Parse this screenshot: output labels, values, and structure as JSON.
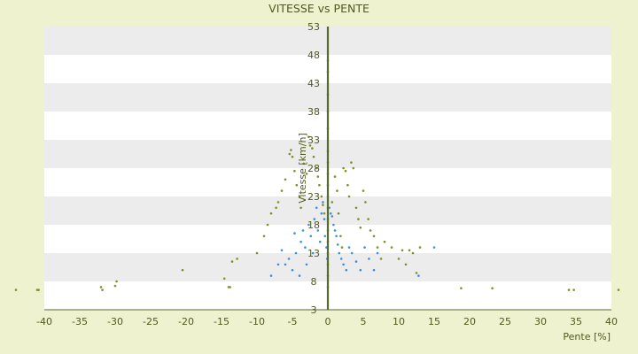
{
  "chart_data": {
    "type": "scatter",
    "title": "VITESSE vs PENTE",
    "xlabel": "Pente [%]",
    "ylabel": "Vitesse [km/h]",
    "xlim": [
      -40,
      40
    ],
    "ylim": [
      3,
      53
    ],
    "xticks": [
      -40,
      -35,
      -30,
      -25,
      -20,
      -15,
      -10,
      -5,
      0,
      5,
      10,
      15,
      20,
      25,
      30,
      35,
      40
    ],
    "yticks": [
      3,
      8,
      13,
      18,
      23,
      28,
      33,
      38,
      43,
      48,
      53
    ],
    "grid": "horizontal alternating bands",
    "legend": "none",
    "colors": {
      "background": "#eef2cf",
      "band_light": "#ffffff",
      "band_dark": "#ececec",
      "text": "#4f5a1c",
      "axis": "#556b2f",
      "series_olive": "#7f8f2a",
      "series_blue": "#3f8fd8"
    },
    "series": [
      {
        "color": "#7f8f2a",
        "points": [
          [
            -44,
            6.5
          ],
          [
            -41,
            6.5
          ],
          [
            -40.8,
            6.5
          ],
          [
            -32,
            7
          ],
          [
            -31.8,
            6.5
          ],
          [
            -30,
            7.2
          ],
          [
            -29.8,
            8
          ],
          [
            -20.5,
            10
          ],
          [
            -14.6,
            8.5
          ],
          [
            -14,
            7
          ],
          [
            -13.8,
            7
          ],
          [
            -13.5,
            11.5
          ],
          [
            -12.8,
            12
          ],
          [
            -10,
            13
          ],
          [
            -9,
            16
          ],
          [
            -8.5,
            18
          ],
          [
            -8,
            20
          ],
          [
            -7.3,
            21
          ],
          [
            -7,
            22
          ],
          [
            -6.5,
            24
          ],
          [
            -6,
            26
          ],
          [
            -5.4,
            30.5
          ],
          [
            -5.2,
            31.2
          ],
          [
            -5,
            30
          ],
          [
            -4.7,
            27.5
          ],
          [
            -4.4,
            25
          ],
          [
            -4,
            23
          ],
          [
            -3.8,
            21
          ],
          [
            -3.4,
            28.8
          ],
          [
            -3,
            27
          ],
          [
            -2.7,
            33.5
          ],
          [
            -2.5,
            32
          ],
          [
            -2.2,
            31.5
          ],
          [
            -2,
            30
          ],
          [
            -1.6,
            28
          ],
          [
            -1.4,
            26.5
          ],
          [
            -1.2,
            25
          ],
          [
            -0.9,
            23
          ],
          [
            -0.7,
            21.5
          ],
          [
            -0.5,
            20
          ],
          [
            0,
            7
          ],
          [
            0,
            9
          ],
          [
            0,
            11
          ],
          [
            0,
            13
          ],
          [
            0,
            15
          ],
          [
            0,
            17
          ],
          [
            0,
            19
          ],
          [
            0,
            21
          ],
          [
            0,
            23
          ],
          [
            0,
            25
          ],
          [
            0,
            27
          ],
          [
            0,
            29
          ],
          [
            0,
            31
          ],
          [
            0,
            35
          ],
          [
            0,
            38
          ],
          [
            0,
            41
          ],
          [
            0,
            45
          ],
          [
            0,
            47
          ],
          [
            0.6,
            22
          ],
          [
            1,
            26.5
          ],
          [
            1.3,
            24
          ],
          [
            1.5,
            20
          ],
          [
            1.8,
            16
          ],
          [
            2,
            14
          ],
          [
            2.2,
            28
          ],
          [
            2.5,
            27.5
          ],
          [
            2.8,
            25
          ],
          [
            3,
            23
          ],
          [
            3.3,
            29
          ],
          [
            3.6,
            28
          ],
          [
            4,
            21
          ],
          [
            4.3,
            19
          ],
          [
            4.6,
            17.5
          ],
          [
            5,
            24
          ],
          [
            5.3,
            22
          ],
          [
            5.7,
            19
          ],
          [
            6,
            17
          ],
          [
            6.5,
            16
          ],
          [
            7,
            14
          ],
          [
            7.5,
            12
          ],
          [
            8,
            15
          ],
          [
            9,
            14
          ],
          [
            10,
            12
          ],
          [
            10.5,
            13.5
          ],
          [
            11,
            11
          ],
          [
            11.5,
            13.5
          ],
          [
            12,
            13
          ],
          [
            12.5,
            9.5
          ],
          [
            13,
            14
          ],
          [
            18.8,
            6.8
          ],
          [
            23.2,
            6.8
          ],
          [
            34,
            6.5
          ],
          [
            34.7,
            6.5
          ],
          [
            41,
            6.5
          ]
        ]
      },
      {
        "color": "#3f8fd8",
        "points": [
          [
            -8,
            9
          ],
          [
            -7,
            11
          ],
          [
            -6.5,
            13.5
          ],
          [
            -6,
            11
          ],
          [
            -5.5,
            12
          ],
          [
            -5,
            10
          ],
          [
            -4.7,
            16.5
          ],
          [
            -4.5,
            13
          ],
          [
            -4,
            9
          ],
          [
            -3.8,
            15
          ],
          [
            -3.5,
            17
          ],
          [
            -3.2,
            14
          ],
          [
            -3,
            11
          ],
          [
            -2.7,
            18
          ],
          [
            -2.4,
            16
          ],
          [
            -2.1,
            13
          ],
          [
            -1.9,
            19
          ],
          [
            -1.6,
            21
          ],
          [
            -1.4,
            17
          ],
          [
            -1.1,
            15
          ],
          [
            -0.9,
            20
          ],
          [
            -0.7,
            22
          ],
          [
            -0.5,
            19
          ],
          [
            -0.4,
            16
          ],
          [
            -0.2,
            14
          ],
          [
            -0.1,
            12
          ],
          [
            0.2,
            21
          ],
          [
            0.4,
            20
          ],
          [
            0.6,
            19.5
          ],
          [
            0.8,
            18
          ],
          [
            1,
            17
          ],
          [
            1.2,
            16
          ],
          [
            1.4,
            14.5
          ],
          [
            1.6,
            13
          ],
          [
            1.9,
            12
          ],
          [
            2.2,
            11
          ],
          [
            2.6,
            10
          ],
          [
            3,
            14
          ],
          [
            3.4,
            13
          ],
          [
            4,
            11.5
          ],
          [
            4.6,
            10
          ],
          [
            5.2,
            14
          ],
          [
            5.8,
            12
          ],
          [
            6.5,
            10
          ],
          [
            7,
            13
          ],
          [
            12.8,
            9
          ],
          [
            15,
            14
          ]
        ]
      }
    ]
  }
}
